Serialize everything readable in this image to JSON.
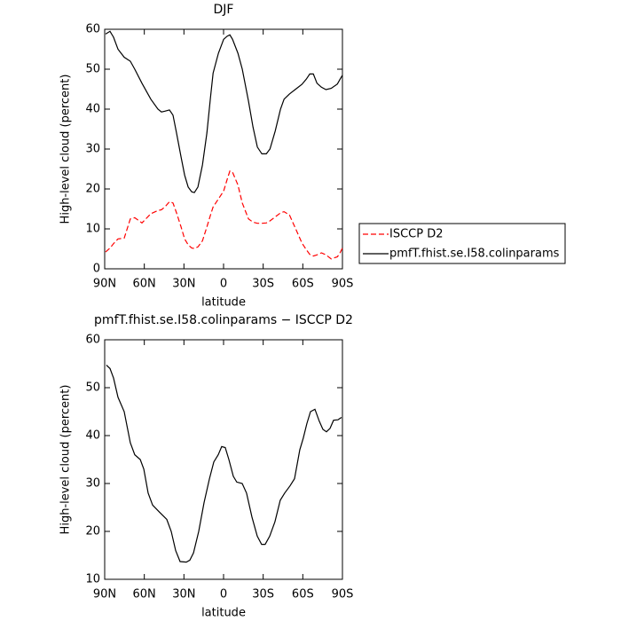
{
  "chart_data": [
    {
      "type": "line",
      "title": "DJF",
      "xlabel": "latitude",
      "ylabel": "High-level cloud (percent)",
      "xlim": [
        90,
        -90
      ],
      "xticks": [
        {
          "value": 90,
          "label": "90N"
        },
        {
          "value": 60,
          "label": "60N"
        },
        {
          "value": 30,
          "label": "30N"
        },
        0,
        {
          "value": -30,
          "label": "30S"
        },
        {
          "value": -60,
          "label": "60S"
        },
        {
          "value": -90,
          "label": "90S"
        }
      ],
      "ylim": [
        0,
        60
      ],
      "yticks": [
        0,
        10,
        20,
        30,
        40,
        50,
        60
      ],
      "legend": "outside-right",
      "x": [
        89.3,
        86.0,
        83.3,
        79.9,
        75.2,
        70.6,
        67.2,
        61.8,
        55.1,
        49.7,
        47.0,
        44.4,
        41.0,
        38.3,
        35.6,
        32.2,
        29.5,
        26.8,
        24.1,
        22.1,
        19.4,
        16.0,
        12.6,
        9.9,
        7.9,
        3.9,
        -0.1,
        -2.8,
        -4.8,
        -6.8,
        -10.9,
        -14.2,
        -18.9,
        -22.3,
        -25.6,
        -29.0,
        -32.4,
        -35.1,
        -39.1,
        -43.1,
        -45.8,
        -49.9,
        -54.6,
        -59.3,
        -62.6,
        -65.3,
        -68.0,
        -70.7,
        -74.1,
        -77.5,
        -81.5,
        -86.2,
        -88.2,
        -90.0
      ],
      "series": [
        {
          "name": "ISCCP D2",
          "color": "#ff0000",
          "dashed": true,
          "values": [
            4.2,
            5.2,
            6.3,
            7.5,
            7.7,
            12.5,
            12.8,
            11.5,
            13.8,
            14.6,
            14.8,
            15.5,
            16.8,
            16.5,
            14.0,
            10.5,
            7.5,
            6.0,
            5.2,
            5.1,
            5.5,
            7.0,
            10.5,
            13.5,
            15.5,
            17.5,
            19.5,
            22.5,
            24.5,
            24.2,
            21.0,
            16.5,
            12.5,
            11.7,
            11.4,
            11.4,
            11.5,
            12.0,
            13.0,
            14.0,
            14.3,
            13.5,
            10.0,
            6.5,
            4.8,
            3.6,
            3.2,
            3.5,
            4.0,
            3.5,
            2.5,
            3.0,
            4.0,
            5.2
          ]
        },
        {
          "name": "pmfT.fhist.se.I58.colinparams",
          "color": "#000000",
          "dashed": false,
          "values": [
            58.8,
            59.5,
            58.0,
            55.0,
            53.0,
            52.0,
            50.0,
            46.5,
            42.5,
            40.0,
            39.3,
            39.5,
            39.8,
            38.5,
            34.0,
            28.0,
            23.5,
            20.5,
            19.3,
            19.1,
            20.5,
            26.0,
            34.0,
            43.0,
            49.0,
            54.0,
            57.5,
            58.3,
            58.6,
            57.5,
            54.0,
            50.0,
            42.0,
            35.5,
            30.5,
            28.8,
            28.8,
            30.0,
            34.5,
            40.0,
            42.5,
            43.8,
            45.0,
            46.2,
            47.5,
            48.8,
            48.8,
            46.5,
            45.5,
            44.9,
            45.2,
            46.3,
            47.5,
            48.5
          ]
        }
      ]
    },
    {
      "type": "line",
      "title": "pmfT.fhist.se.I58.colinparams − ISCCP D2",
      "xlabel": "latitude",
      "ylabel": "High-level cloud (percent)",
      "xlim": [
        90,
        -90
      ],
      "xticks": [
        {
          "value": 90,
          "label": "90N"
        },
        {
          "value": 60,
          "label": "60N"
        },
        {
          "value": 30,
          "label": "30N"
        },
        0,
        {
          "value": -30,
          "label": "30S"
        },
        {
          "value": -60,
          "label": "60S"
        },
        {
          "value": -90,
          "label": "90S"
        }
      ],
      "ylim": [
        10,
        60
      ],
      "yticks": [
        10,
        20,
        30,
        40,
        50,
        60
      ],
      "x": [
        88.7,
        86.0,
        83.3,
        79.9,
        75.2,
        70.6,
        67.2,
        63.1,
        60.4,
        57.1,
        53.7,
        48.4,
        43.0,
        39.6,
        36.3,
        32.9,
        28.2,
        25.5,
        22.8,
        18.8,
        14.8,
        10.7,
        7.4,
        4.0,
        1.4,
        -1.3,
        -4.0,
        -7.4,
        -10.0,
        -14.1,
        -17.4,
        -21.5,
        -25.5,
        -28.8,
        -31.5,
        -34.9,
        -38.9,
        -42.9,
        -46.3,
        -50.3,
        -53.7,
        -57.7,
        -60.4,
        -63.1,
        -65.8,
        -69.2,
        -72.5,
        -75.2,
        -77.9,
        -80.6,
        -83.3,
        -86.6,
        -89.3
      ],
      "series": [
        {
          "color": "#000000",
          "dashed": false,
          "values": [
            54.7,
            54.0,
            52.0,
            48.0,
            45.0,
            38.5,
            36.0,
            35.0,
            33.0,
            28.0,
            25.5,
            24.0,
            22.5,
            20.0,
            16.0,
            13.7,
            13.6,
            14.0,
            15.5,
            20.0,
            26.0,
            31.0,
            34.5,
            36.0,
            37.7,
            37.5,
            35.0,
            31.5,
            30.3,
            30.0,
            28.0,
            23.0,
            19.0,
            17.3,
            17.3,
            19.0,
            22.0,
            26.5,
            28.0,
            29.5,
            31.0,
            37.0,
            39.5,
            42.5,
            45.0,
            45.5,
            43.0,
            41.3,
            40.8,
            41.5,
            43.2,
            43.3,
            43.8
          ]
        }
      ]
    }
  ]
}
